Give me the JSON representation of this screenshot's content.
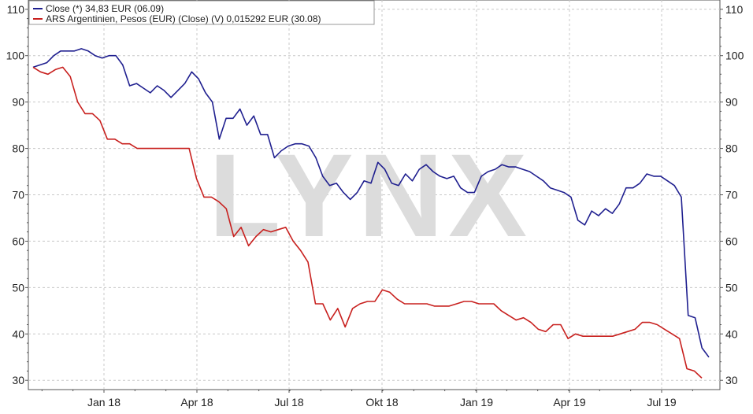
{
  "chart_data": {
    "type": "line",
    "watermark": "LYNX",
    "x_tick_labels": [
      "Jan 18",
      "Apr 18",
      "Jul 18",
      "Okt 18",
      "Jan 19",
      "Apr 19",
      "Jul 19"
    ],
    "y_ticks": [
      30,
      40,
      50,
      60,
      70,
      80,
      90,
      100,
      110
    ],
    "ylim": [
      28,
      112
    ],
    "grid": true,
    "legend_position": "top-left",
    "colors": {
      "blue": "#1f1f8f",
      "red": "#c8201e",
      "grid": "#c8c8c8",
      "axis": "#555555",
      "watermark": "#d9d9d9"
    },
    "series": [
      {
        "name": "Close (*) 34,83 EUR (06.09)",
        "color": "#1f1f8f",
        "values": [
          97.5,
          98,
          98.5,
          100,
          101,
          101,
          101,
          101.5,
          101,
          100,
          99.5,
          100,
          100,
          98,
          93.5,
          94,
          93,
          92,
          93.5,
          92.5,
          91,
          92.5,
          94,
          96.5,
          95,
          92,
          90,
          82,
          86.5,
          86.5,
          88.5,
          85,
          87,
          83,
          83,
          78,
          79.5,
          80.5,
          81,
          81,
          80.5,
          78,
          74,
          72,
          72.5,
          70.5,
          69,
          70.5,
          73,
          72.5,
          77,
          75.5,
          72.5,
          72,
          74.5,
          73,
          75.5,
          76.5,
          75,
          74,
          73.5,
          74,
          71.5,
          70.5,
          70.5,
          74,
          75,
          75.5,
          76.5,
          76,
          76,
          75.5,
          75,
          74,
          73,
          71.5,
          71,
          70.5,
          69.5,
          64.5,
          63.5,
          66.5,
          65.5,
          67,
          66,
          68,
          71.5,
          71.5,
          72.5,
          74.5,
          74,
          74,
          73,
          72,
          69.5,
          44,
          43.5,
          37,
          35
        ]
      },
      {
        "name": "ARS Argentinien, Pesos (EUR) (Close) (V) 0,015292 EUR (30.08)",
        "color": "#c8201e",
        "values": [
          97.5,
          96.5,
          96,
          97,
          97.5,
          95.5,
          90,
          87.5,
          87.5,
          86,
          82,
          82,
          81,
          81,
          80,
          80,
          80,
          80,
          80,
          80,
          80,
          80,
          73.5,
          69.5,
          69.5,
          68.5,
          67,
          61,
          63,
          59,
          61,
          62.5,
          62,
          62.5,
          63,
          60,
          58,
          55.5,
          46.5,
          46.5,
          43,
          45.5,
          41.5,
          45.5,
          46.5,
          47,
          47,
          49.5,
          49,
          47.5,
          46.5,
          46.5,
          46.5,
          46.5,
          46,
          46,
          46,
          46.5,
          47,
          47,
          46.5,
          46.5,
          46.5,
          45,
          44,
          43,
          43.5,
          42.5,
          41,
          40.5,
          42,
          42,
          39,
          40,
          39.5,
          39.5,
          39.5,
          39.5,
          39.5,
          40,
          40.5,
          41,
          42.5,
          42.5,
          42,
          41,
          40,
          39,
          32.5,
          32,
          30.5
        ]
      }
    ]
  }
}
